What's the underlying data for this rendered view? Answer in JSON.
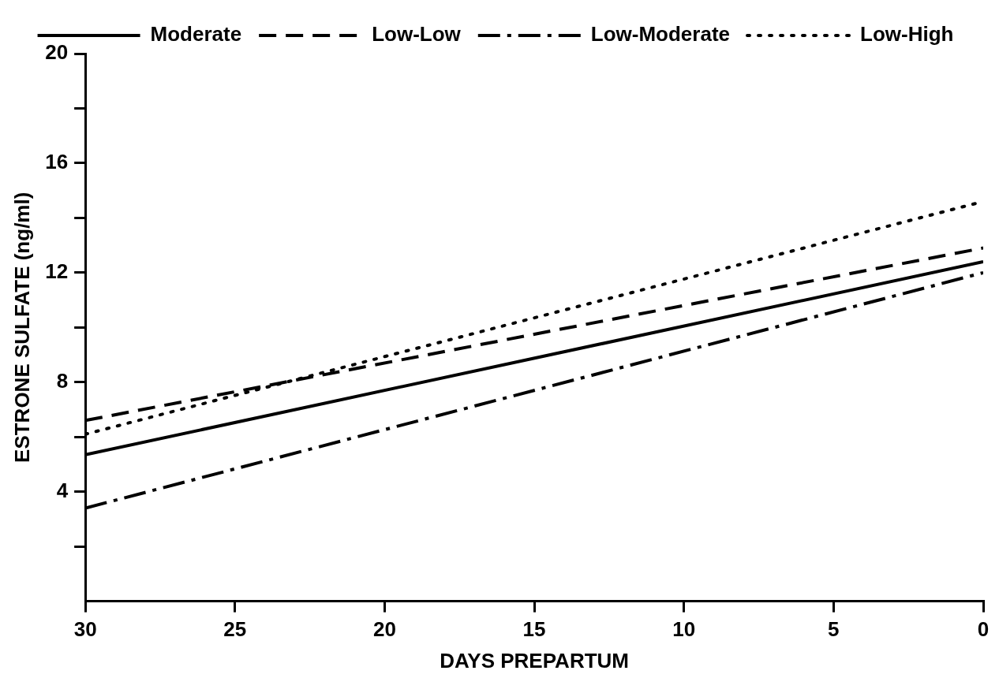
{
  "chart_data": {
    "type": "line",
    "xlabel": "DAYS PREPARTUM",
    "ylabel": "ESTRONE SULFATE (ng/ml)",
    "x": [
      30,
      0
    ],
    "series": [
      {
        "name": "Moderate",
        "color": "#000000",
        "line_style": "solid",
        "values": [
          5.35,
          12.4
        ]
      },
      {
        "name": "Low-Low",
        "color": "#000000",
        "line_style": "dashed",
        "values": [
          6.6,
          12.9
        ]
      },
      {
        "name": "Low-Moderate",
        "color": "#000000",
        "line_style": "dashdot",
        "values": [
          3.4,
          12.0
        ]
      },
      {
        "name": "Low-High",
        "color": "#000000",
        "line_style": "dotted",
        "values": [
          6.1,
          14.6
        ]
      }
    ],
    "xlim": [
      30,
      0
    ],
    "xticks": [
      30,
      25,
      20,
      15,
      10,
      5,
      0
    ],
    "ylim": [
      0,
      20
    ],
    "yticks": [
      {
        "value": 2,
        "label": null
      },
      4,
      {
        "value": 6,
        "label": null
      },
      8,
      {
        "value": 10,
        "label": null
      },
      12,
      {
        "value": 14,
        "label": null
      },
      16,
      {
        "value": 18,
        "label": null
      },
      20
    ],
    "grid": false,
    "legend": "top",
    "marker": "none"
  }
}
